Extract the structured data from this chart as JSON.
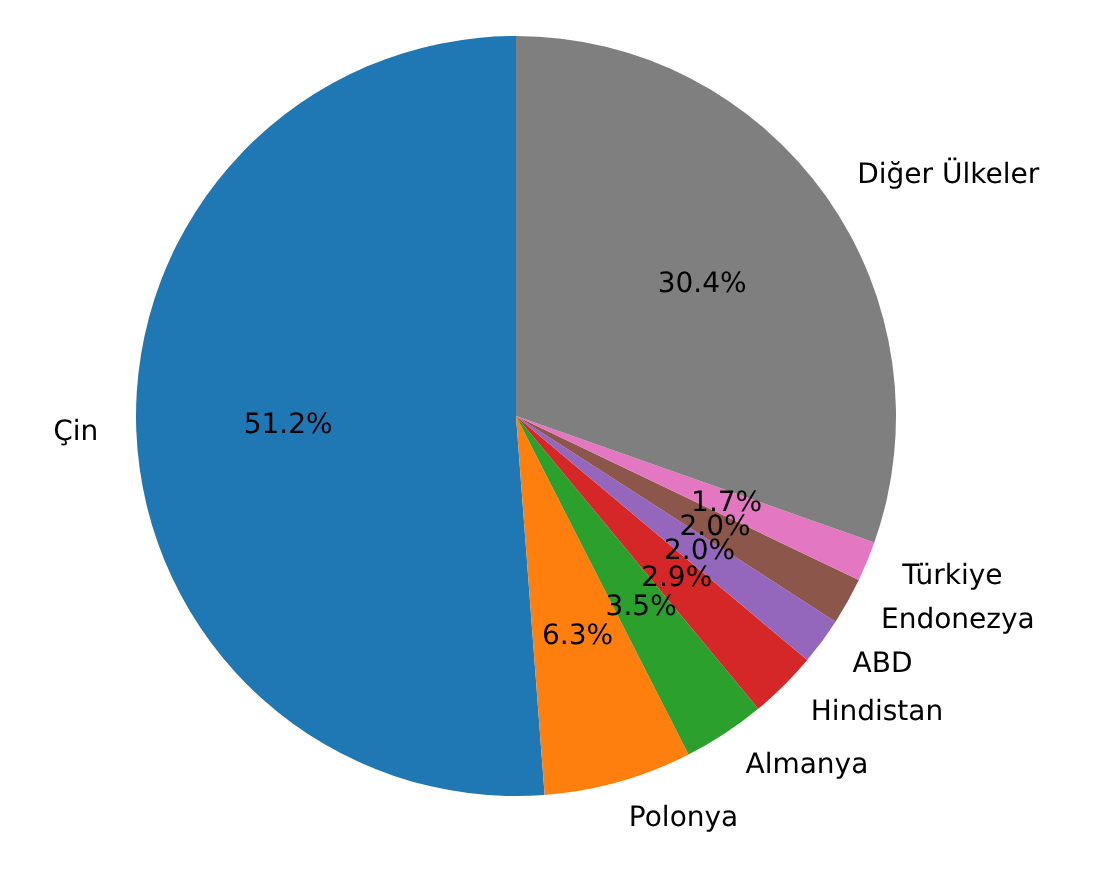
{
  "chart_data": {
    "type": "pie",
    "categories": [
      "Çin",
      "Polonya",
      "Almanya",
      "Hindistan",
      "ABD",
      "Endonezya",
      "Türkiye",
      "Diğer Ülkeler"
    ],
    "values": [
      51.2,
      6.3,
      3.5,
      2.9,
      2.0,
      2.0,
      1.7,
      30.4
    ],
    "colors": [
      "#1f77b4",
      "#ff7f0e",
      "#2ca02c",
      "#d62728",
      "#9467bd",
      "#8c564b",
      "#e377c2",
      "#7f7f7f"
    ],
    "value_labels": [
      "51.2%",
      "6.3%",
      "3.5%",
      "2.9%",
      "2.0%",
      "2.0%",
      "1.7%",
      "30.4%"
    ],
    "legend": false
  }
}
